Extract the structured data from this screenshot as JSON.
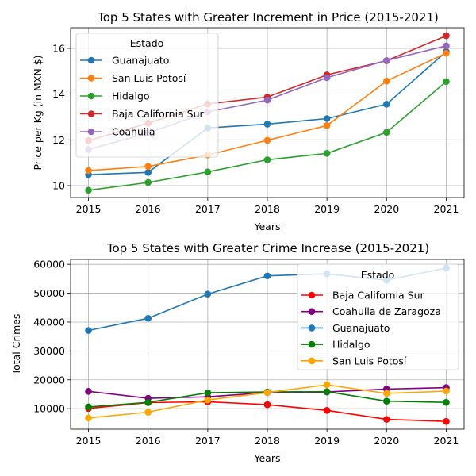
{
  "chart_data": [
    {
      "type": "line",
      "title": "Top 5 States with Greater Increment in Price (2015-2021)",
      "xlabel": "Years",
      "ylabel": "Price per Kg (in MXN $)",
      "x": [
        2015,
        2016,
        2017,
        2018,
        2019,
        2020,
        2021
      ],
      "xlim": [
        2014.7,
        2021.3
      ],
      "ylim": [
        9.48,
        16.9
      ],
      "yticks": [
        10,
        12,
        14,
        16
      ],
      "grid": true,
      "legend": {
        "title": "Estado",
        "placement": "upper left"
      },
      "series": [
        {
          "name": "Guanajuato",
          "color": "#1f77b4",
          "values": [
            10.48,
            10.58,
            12.52,
            12.69,
            12.93,
            13.56,
            15.86
          ]
        },
        {
          "name": "San Luis Potosí",
          "color": "#ff7f0e",
          "values": [
            10.66,
            10.84,
            11.34,
            11.98,
            12.63,
            14.57,
            15.79
          ]
        },
        {
          "name": "Hidalgo",
          "color": "#2ca02c",
          "values": [
            9.8,
            10.14,
            10.6,
            11.13,
            11.41,
            12.33,
            14.55
          ]
        },
        {
          "name": "Baja California Sur",
          "color": "#d62728",
          "values": [
            11.97,
            12.73,
            13.57,
            13.87,
            14.84,
            15.46,
            16.55
          ]
        },
        {
          "name": "Coahuila",
          "color": "#9467bd",
          "values": [
            11.58,
            12.3,
            13.22,
            13.74,
            14.72,
            15.47,
            16.11
          ]
        }
      ]
    },
    {
      "type": "line",
      "title": "Top 5 States with Greater Crime Increase (2015-2021)",
      "xlabel": "Years",
      "ylabel": "Total Crimes",
      "x": [
        2015,
        2016,
        2017,
        2018,
        2019,
        2020,
        2021
      ],
      "xlim": [
        2014.7,
        2021.3
      ],
      "ylim": [
        2900,
        61700
      ],
      "yticks": [
        10000,
        20000,
        30000,
        40000,
        50000,
        60000
      ],
      "grid": true,
      "legend": {
        "title": "Estado",
        "placement": "upper right"
      },
      "series": [
        {
          "name": "Baja California Sur",
          "color": "#ff0000",
          "values": [
            10100,
            12100,
            12400,
            11400,
            9400,
            6300,
            5600
          ]
        },
        {
          "name": "Coahuila de Zaragoza",
          "color": "#800080",
          "values": [
            16000,
            13600,
            14100,
            15600,
            15800,
            16800,
            17300
          ]
        },
        {
          "name": "Guanajuato",
          "color": "#1f77b4",
          "values": [
            37100,
            41300,
            49700,
            56000,
            56700,
            54500,
            58700
          ]
        },
        {
          "name": "Hidalgo",
          "color": "#008000",
          "values": [
            10600,
            12200,
            15500,
            15800,
            15900,
            12600,
            12200
          ]
        },
        {
          "name": "San Luis Potosí",
          "color": "#ffa500",
          "values": [
            6800,
            8800,
            13000,
            15600,
            18300,
            15300,
            16100
          ]
        }
      ]
    }
  ]
}
